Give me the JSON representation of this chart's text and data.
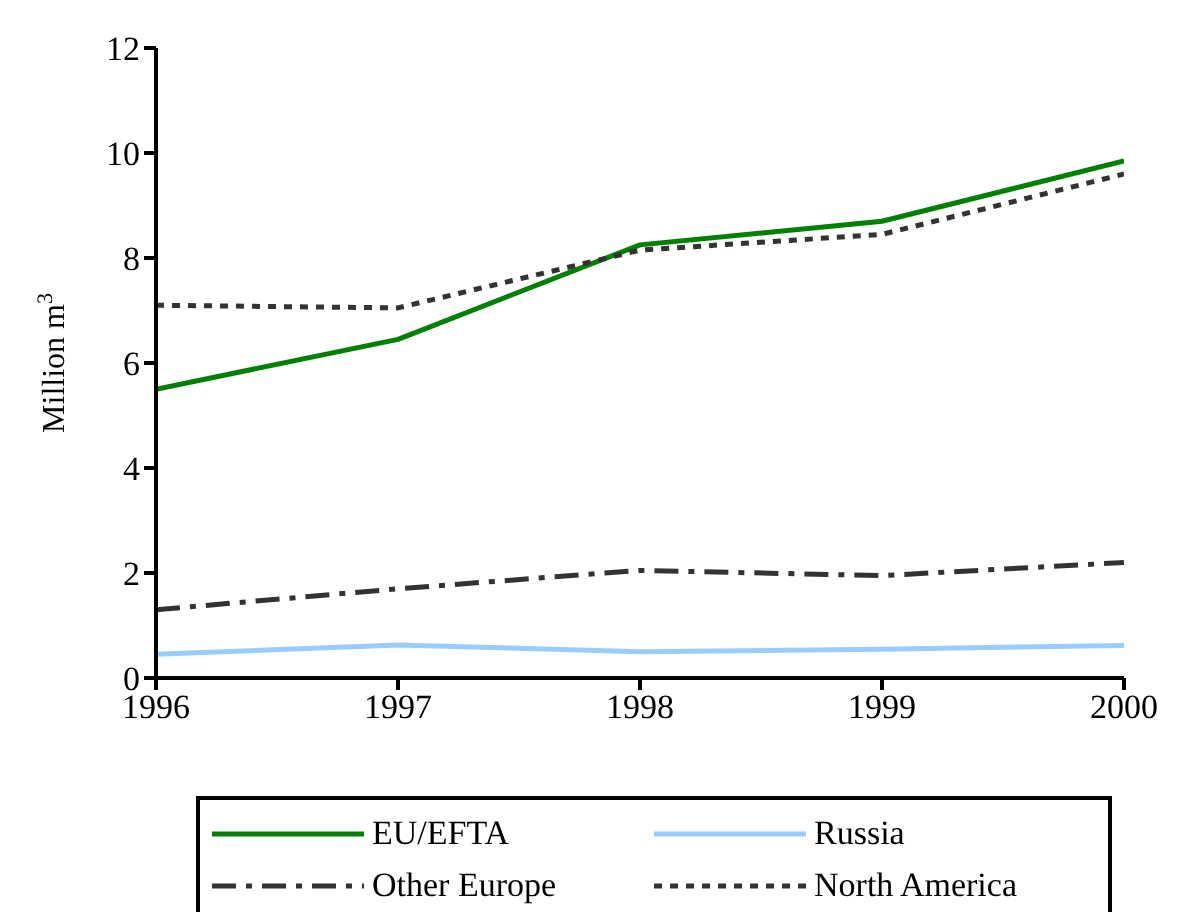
{
  "chart_data": {
    "type": "line",
    "ylabel": "Million m$^{3}$",
    "x": [
      1996,
      1997,
      1998,
      1999,
      2000
    ],
    "xlim": [
      1996,
      2000
    ],
    "xticks": [
      1996,
      1997,
      1998,
      1999,
      2000
    ],
    "ylim": [
      0,
      12
    ],
    "yticks": [
      0,
      2,
      4,
      6,
      8,
      10,
      12
    ],
    "grid": false,
    "legend": "bottom",
    "marker": "none",
    "series": [
      {
        "name": "EU/EFTA",
        "color": "#008000",
        "line_style": "solid",
        "values": [
          5.5,
          6.45,
          8.25,
          8.7,
          9.85
        ]
      },
      {
        "name": "Other Europe",
        "color": "#333333",
        "line_style": "dashed",
        "values": [
          1.3,
          1.7,
          2.05,
          1.95,
          2.2
        ]
      },
      {
        "name": "Russia",
        "color": "#99ccff",
        "line_style": "solid",
        "values": [
          0.45,
          0.63,
          0.5,
          0.55,
          0.62
        ]
      },
      {
        "name": "North America",
        "color": "#333333",
        "line_style": "dotted",
        "values": [
          7.1,
          7.05,
          8.15,
          8.45,
          9.6
        ]
      }
    ]
  }
}
